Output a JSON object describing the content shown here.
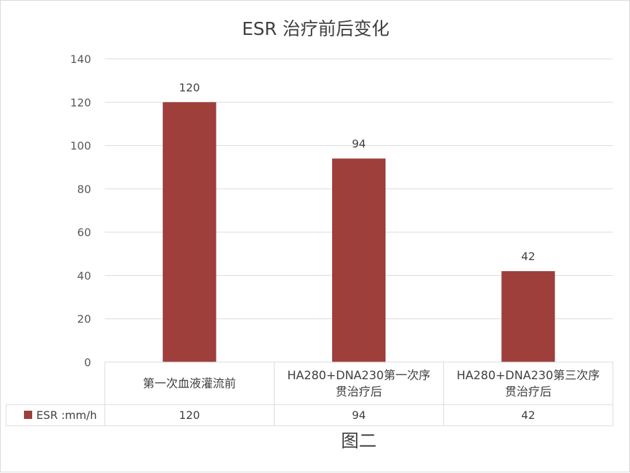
{
  "chart_data": {
    "type": "bar",
    "title": "ESR 治疗前后变化",
    "categories": [
      [
        "第一次血液灌流前"
      ],
      [
        "HA280+DNA230第一次序",
        "贯治疗后"
      ],
      [
        "HA280+DNA230第三次序",
        "贯治疗后"
      ]
    ],
    "series": [
      {
        "name": "ESR :mm/h",
        "values": [
          120,
          94,
          42
        ],
        "color": "#9e3f3c"
      }
    ],
    "ylim": [
      0,
      140
    ],
    "yticks": [
      0,
      20,
      40,
      60,
      80,
      100,
      120,
      140
    ],
    "grid": true,
    "data_table": true,
    "legend": "data-table"
  },
  "caption": "图二"
}
